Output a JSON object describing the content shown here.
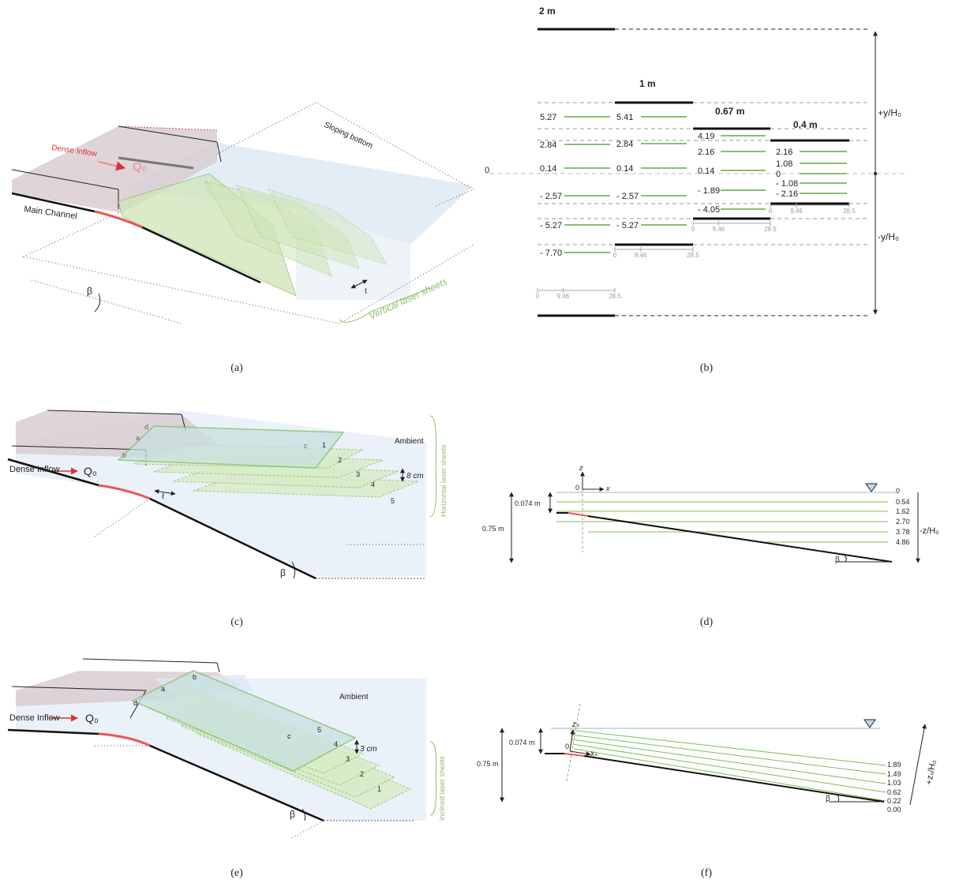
{
  "panels": {
    "a": {
      "caption": "(a)",
      "dense_inflow": "Dense Inflow",
      "q0": "Q₀",
      "sloping_bottom": "Sloping bottom",
      "main_channel": "Main Channel",
      "beta": "β",
      "t": "t",
      "laser_sheets": "Vertical laser sheets"
    },
    "b": {
      "caption": "(b)",
      "zero": "0",
      "plus_axis": "+y/H₀",
      "minus_axis": "-y/H₀",
      "scale": [
        "0",
        "9.46",
        "28.5"
      ],
      "columns": [
        {
          "width": "2 m",
          "values": [
            "5.27",
            "2.84",
            "0.14",
            "- 2.57",
            "- 5.27",
            "- 7.70"
          ]
        },
        {
          "width": "1 m",
          "values": [
            "5.41",
            "2.84",
            "0.14",
            "- 2.57",
            "- 5.27"
          ]
        },
        {
          "width": "0.67 m",
          "values": [
            "4.19",
            "2.16",
            "0.14",
            "- 1.89",
            "- 4.05"
          ]
        },
        {
          "width": "0.4 m",
          "values": [
            "2.16",
            "1.08",
            "0",
            "- 1.08",
            "- 2.16"
          ]
        }
      ]
    },
    "c": {
      "caption": "(c)",
      "ambient": "Ambient",
      "corners": [
        "a",
        "b",
        "c",
        "d"
      ],
      "sheets": [
        "1",
        "2",
        "3",
        "4",
        "5"
      ],
      "spacing": "8 cm",
      "ell": "ℓ",
      "dense_inflow": "Dense Inflow",
      "q0": "Q₀",
      "laser_sheets": "Horizontal  laser sheets",
      "beta": "β"
    },
    "d": {
      "caption": "(d)",
      "z": "z",
      "x": "x",
      "origin": "0",
      "inlet_depth": "0.074 m",
      "depth": "0.75 m",
      "levels": [
        "0",
        "0.54",
        "1.62",
        "2.70",
        "3.78",
        "4.86"
      ],
      "axis": "-z/H₀",
      "beta": "β"
    },
    "e": {
      "caption": "(e)",
      "ambient": "Ambient",
      "corners": [
        "a",
        "b",
        "c",
        "d"
      ],
      "sheets": [
        "1",
        "2",
        "3",
        "4",
        "5"
      ],
      "spacing": "3 cm",
      "dense_inflow": "Dense Inflow",
      "q0": "Q₀",
      "laser_sheets": "Inclined laser sheets",
      "beta": "β"
    },
    "f": {
      "caption": "(f)",
      "z": "zₛ",
      "x": "xₛ",
      "origin": "0",
      "inlet_depth": "0.074 m",
      "depth": "0.75 m",
      "levels": [
        "1.89",
        "1.49",
        "1.03",
        "0.62",
        "0.22",
        "0.00"
      ],
      "axis": "+zₛ/H₀",
      "beta": "β"
    }
  }
}
